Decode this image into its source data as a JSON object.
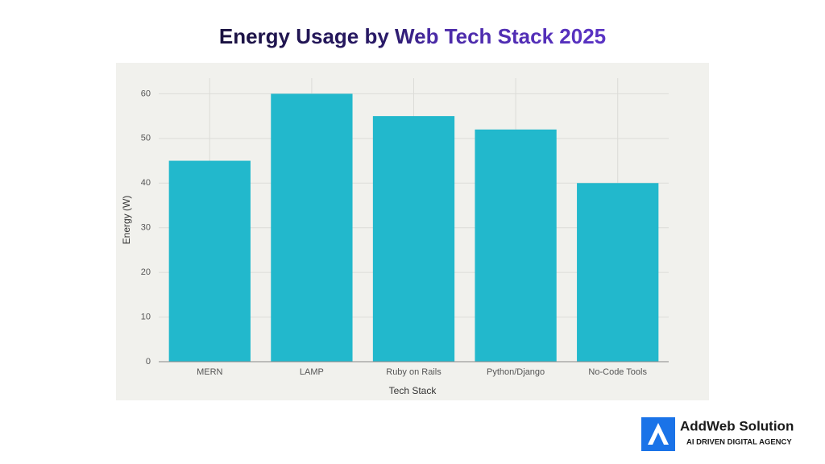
{
  "chart_data": {
    "type": "bar",
    "title": "Energy Usage by Web Tech Stack 2025",
    "x_label": "Tech Stack",
    "y_label": "Energy (W)",
    "categories": [
      "MERN",
      "LAMP",
      "Ruby on Rails",
      "Python/Django",
      "No-Code Tools"
    ],
    "values": [
      45,
      60,
      55,
      52,
      40
    ],
    "color": "#22b8cc",
    "ylim": [
      0,
      63.5
    ],
    "yticks": [
      0,
      10,
      20,
      30,
      40,
      50,
      60
    ],
    "grid": true
  },
  "logo": {
    "name": "AddWeb Solution",
    "tagline": "AI DRIVEN DIGITAL AGENCY"
  }
}
